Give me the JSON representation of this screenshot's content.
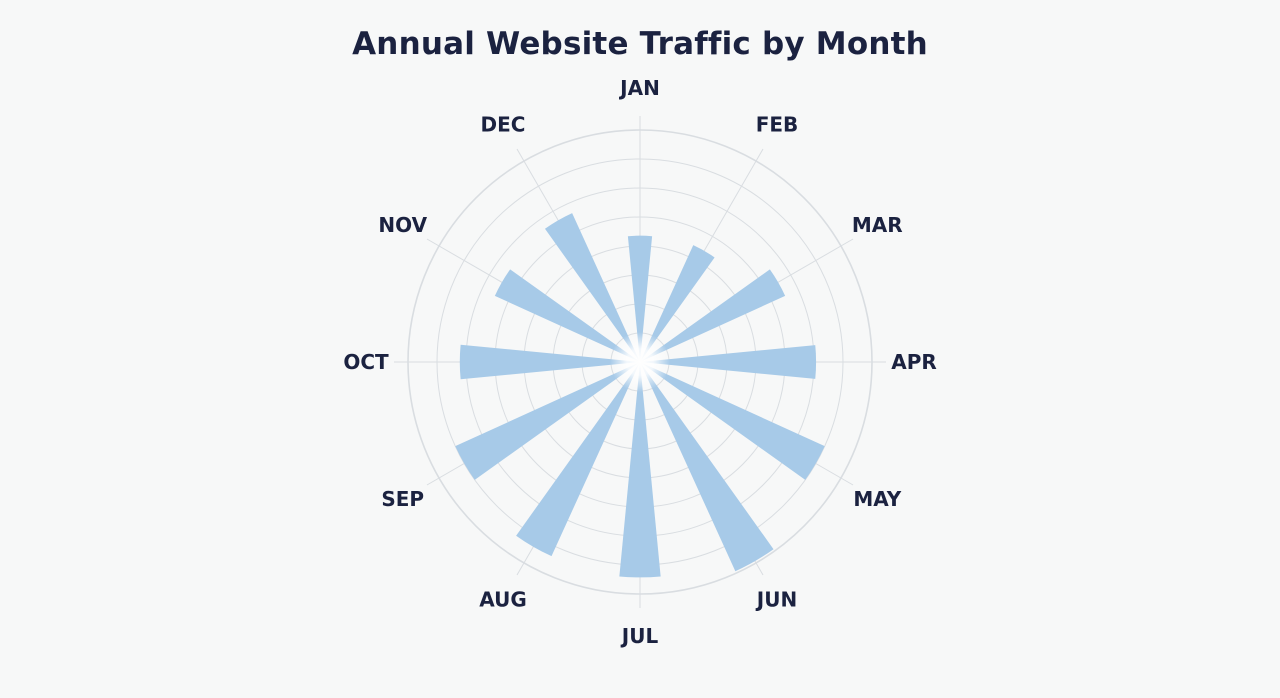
{
  "chart_data": {
    "type": "polar-bar",
    "title": "Annual Website Traffic by Month",
    "categories": [
      "JAN",
      "FEB",
      "MAR",
      "APR",
      "MAY",
      "JUN",
      "JUL",
      "AUG",
      "SEP",
      "OCT",
      "NOV",
      "DEC"
    ],
    "values": [
      61,
      62,
      77,
      85,
      98,
      111,
      104,
      103,
      98,
      87,
      77,
      79
    ],
    "rlim": [
      0,
      112
    ],
    "grid": true,
    "bar_color": "#a7cae8",
    "grid_color": "#d9dde1",
    "text_color": "#1b2240"
  }
}
